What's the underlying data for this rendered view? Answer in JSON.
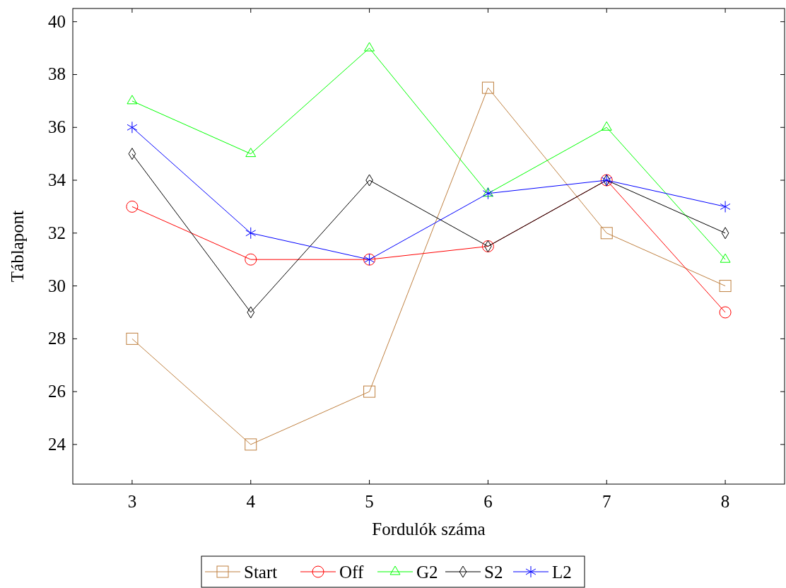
{
  "chart_data": {
    "type": "line",
    "xlabel": "Fordulók száma",
    "ylabel": "Táblapont",
    "x": [
      3,
      4,
      5,
      6,
      7,
      8
    ],
    "series": [
      {
        "name": "Start",
        "color": "#bf8040",
        "marker": "square",
        "values": [
          28,
          24,
          26,
          37.5,
          32,
          30
        ]
      },
      {
        "name": "Off",
        "color": "#ff0000",
        "marker": "circle",
        "values": [
          33,
          31,
          31,
          31.5,
          34,
          29
        ]
      },
      {
        "name": "G2",
        "color": "#00ff00",
        "marker": "triangle",
        "values": [
          37,
          35,
          39,
          33.5,
          36,
          31
        ]
      },
      {
        "name": "S2",
        "color": "#000000",
        "marker": "diamond",
        "values": [
          35,
          29,
          34,
          31.5,
          34,
          32
        ]
      },
      {
        "name": "L2",
        "color": "#0000ff",
        "marker": "cross",
        "values": [
          36,
          32,
          31,
          33.5,
          34,
          33
        ]
      }
    ],
    "xlim": [
      2.5,
      8.5
    ],
    "xticks": [
      3,
      4,
      5,
      6,
      7,
      8
    ],
    "ylim": [
      22.5,
      40.5
    ],
    "yticks": [
      24,
      26,
      28,
      30,
      32,
      34,
      36,
      38,
      40
    ],
    "grid": false,
    "legend": "bottom"
  }
}
